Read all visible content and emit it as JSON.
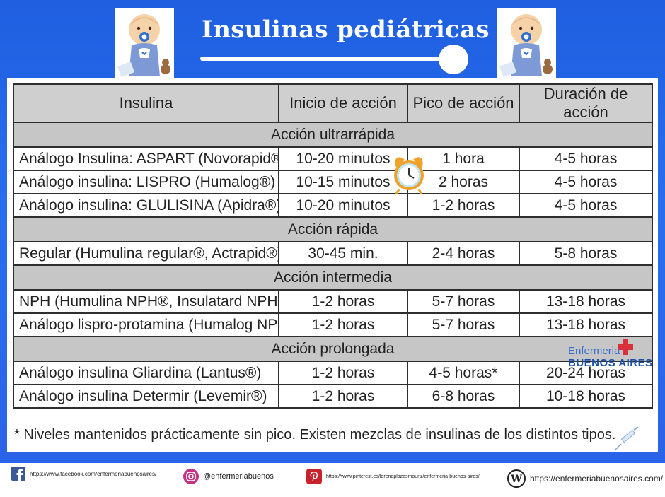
{
  "header": {
    "title": "Insulinas pediátricas"
  },
  "table": {
    "headers": [
      "Insulina",
      "Inicio de acción",
      "Pico de acción",
      "Duración de acción"
    ],
    "sections": [
      {
        "title": "Acción ultrarrápida",
        "rows": [
          [
            "Análogo Insulina: ASPART (Novorapid®)",
            "10-20 minutos",
            "1 hora",
            "4-5 horas"
          ],
          [
            "Análogo insulina: LISPRO (Humalog®)",
            "10-15 minutos",
            "2 horas",
            "4-5 horas"
          ],
          [
            "Análogo insulina: GLULISINA (Apidra®)",
            "10-20 minutos",
            "1-2 horas",
            "4-5 horas"
          ]
        ]
      },
      {
        "title": "Acción rápida",
        "rows": [
          [
            "Regular (Humulina regular®, Actrapid®)",
            "30-45 min.",
            "2-4 horas",
            "5-8 horas"
          ]
        ]
      },
      {
        "title": "Acción intermedia",
        "rows": [
          [
            "NPH (Humulina NPH®, Insulatard NPH®)",
            "1-2 horas",
            "5-7 horas",
            "13-18 horas"
          ],
          [
            "Análogo lispro-protamina (Humalog NPL®)",
            "1-2 horas",
            "5-7 horas",
            "13-18 horas"
          ]
        ]
      },
      {
        "title": "Acción prolongada",
        "rows": [
          [
            "Análogo insulina Gliardina (Lantus®)",
            "1-2 horas",
            "4-5 horas*",
            "20-24 horas"
          ],
          [
            "Análogo insulina Determir (Levemir®)",
            "1-2 horas",
            "6-8 horas",
            "10-18 horas"
          ]
        ]
      }
    ]
  },
  "footnote": "* Niveles mantenidos prácticamente sin pico. Existen mezclas de insulinas de los distintos tipos.",
  "brand": {
    "line1": "Enfermeria",
    "line2": "BUENOS AIRES"
  },
  "footer": {
    "facebook": "https://www.facebook.com/enfermeriabuenosaires/",
    "instagram": "@enfermeriabuenos",
    "pinterest": "https://www.pinterest.es/lorenaplazasmouriz/enfermeria-buenos-aires/",
    "wordpress": "https://enfermeriabuenosaires.com/"
  },
  "icons": [
    "baby-icon",
    "alarm-clock-icon",
    "medical-cross-icon",
    "syringe-icon",
    "facebook-icon",
    "instagram-icon",
    "pinterest-icon",
    "wordpress-icon"
  ],
  "colors": {
    "background_blue": "#2a6ef0",
    "section_gray": "#c6c6c6",
    "header_gray": "#cfcfcf",
    "brand_red": "#d9313b",
    "brand_blue": "#1a4fa8"
  }
}
